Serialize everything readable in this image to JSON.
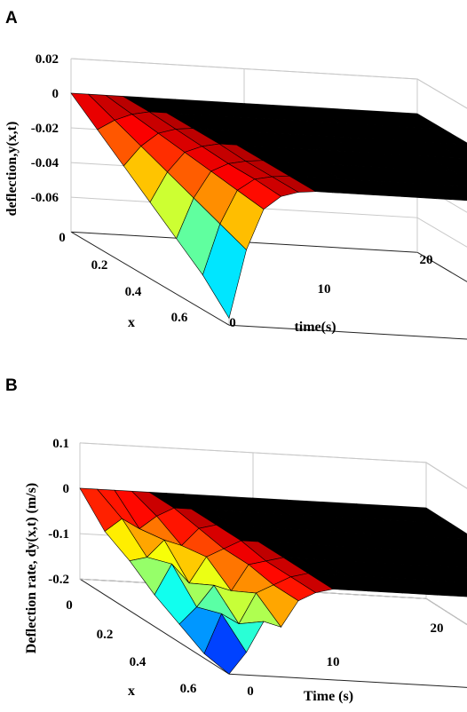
{
  "chart_data": [
    {
      "type": "surface",
      "panel": "A",
      "xlabel": "x",
      "ylabel": "time(s)",
      "zlabel": "deflection,y(x,t)",
      "x_range": [
        0,
        0.6
      ],
      "t_range": [
        0,
        20
      ],
      "zlim": [
        -0.08,
        0.02
      ],
      "x_ticks": [
        "0",
        "0.2",
        "0.4",
        "0.6"
      ],
      "t_ticks": [
        "0",
        "10",
        "20"
      ],
      "z_ticks": [
        "0.02",
        "0",
        "-0.02",
        "-0.04",
        "-0.06"
      ],
      "grid": true,
      "colormap": "jet",
      "x": [
        0,
        0.1,
        0.2,
        0.3,
        0.4,
        0.5,
        0.6
      ],
      "t": [
        0,
        1,
        2,
        3,
        4,
        5,
        6,
        8,
        10,
        12,
        14,
        16,
        18,
        20
      ],
      "z": [
        [
          0,
          0,
          0,
          0,
          0,
          0,
          0,
          0,
          0,
          0,
          0,
          0,
          0,
          0
        ],
        [
          -0.012,
          -0.006,
          -0.002,
          0,
          0,
          0,
          0,
          0,
          0,
          0,
          0,
          0,
          0,
          0
        ],
        [
          -0.024,
          -0.012,
          -0.004,
          -0.001,
          0,
          0,
          0,
          0,
          0,
          0,
          0,
          0,
          0,
          0
        ],
        [
          -0.036,
          -0.018,
          -0.006,
          -0.002,
          0,
          0,
          0,
          0,
          0,
          0,
          0,
          0,
          0,
          0
        ],
        [
          -0.048,
          -0.024,
          -0.008,
          -0.003,
          -0.001,
          0,
          0,
          0,
          0,
          0,
          0,
          0,
          0,
          0
        ],
        [
          -0.06,
          -0.03,
          -0.01,
          -0.003,
          -0.001,
          0,
          0,
          0,
          0,
          0,
          0,
          0,
          0,
          0
        ],
        [
          -0.076,
          -0.036,
          -0.012,
          -0.004,
          -0.001,
          0,
          0,
          0,
          0,
          0,
          0,
          0,
          0,
          0
        ]
      ]
    },
    {
      "type": "surface",
      "panel": "B",
      "xlabel": "x",
      "ylabel": "Time (s)",
      "zlabel": "Deflection rate, dy(x,t) (m/s)",
      "x_range": [
        0,
        0.6
      ],
      "t_range": [
        0,
        20
      ],
      "zlim": [
        -0.2,
        0.1
      ],
      "x_ticks": [
        "0",
        "0.2",
        "0.4",
        "0.6"
      ],
      "t_ticks": [
        "0",
        "10",
        "20"
      ],
      "z_ticks": [
        "0.1",
        "0",
        "-0.1",
        "-0.2"
      ],
      "grid": true,
      "colormap": "jet",
      "x": [
        0,
        0.1,
        0.2,
        0.3,
        0.4,
        0.5,
        0.6
      ],
      "t": [
        0,
        1,
        2,
        3,
        4,
        5,
        6,
        8,
        10,
        12,
        14,
        16,
        18,
        20
      ],
      "z": [
        [
          0,
          0,
          0,
          0,
          0,
          0,
          0,
          0,
          0,
          0,
          0,
          0,
          0,
          0
        ],
        [
          -0.06,
          -0.03,
          -0.05,
          -0.02,
          0,
          0,
          0,
          0,
          0,
          0,
          0,
          0,
          0,
          0
        ],
        [
          -0.09,
          -0.08,
          -0.04,
          -0.05,
          -0.01,
          0,
          0,
          0,
          0,
          0,
          0,
          0,
          0,
          0
        ],
        [
          -0.13,
          -0.06,
          -0.1,
          -0.04,
          -0.02,
          0,
          0,
          0,
          0,
          0,
          0,
          0,
          0,
          0
        ],
        [
          -0.16,
          -0.12,
          -0.07,
          -0.08,
          -0.02,
          -0.01,
          0,
          0,
          0,
          0,
          0,
          0,
          0,
          0
        ],
        [
          -0.19,
          -0.1,
          -0.12,
          -0.05,
          -0.03,
          -0.01,
          0,
          0,
          0,
          0,
          0,
          0,
          0,
          0
        ],
        [
          -0.2,
          -0.15,
          -0.08,
          -0.09,
          -0.03,
          -0.01,
          0,
          0,
          0,
          0,
          0,
          0,
          0,
          0
        ]
      ]
    }
  ],
  "panels": [
    "A",
    "B"
  ]
}
